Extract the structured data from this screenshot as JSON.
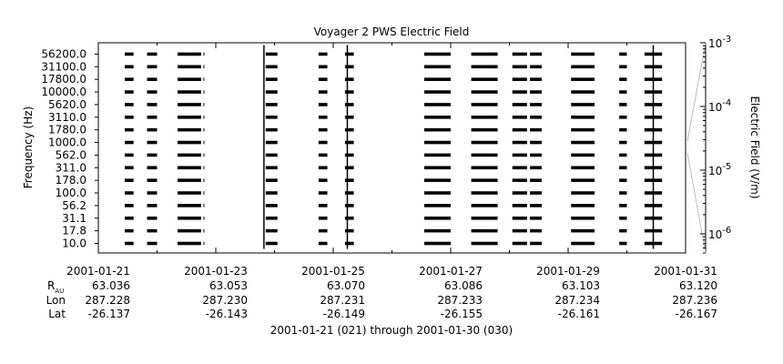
{
  "chart_data": {
    "type": "line",
    "title": "Voyager 2 PWS Electric Field",
    "ylabel": "Frequency (Hz)",
    "y2label": "Electric Field (V/m)",
    "subtitle": "2001-01-21 (021) through 2001-01-30 (030)",
    "x_range": [
      "2001-01-21",
      "2001-01-31"
    ],
    "channels": [
      "10.0",
      "17.8",
      "31.1",
      "56.2",
      "100.0",
      "178.0",
      "311.0",
      "562.0",
      "1000.0",
      "1780.0",
      "3110.0",
      "5620.0",
      "10000.0",
      "17800.0",
      "31100.0",
      "56200.0"
    ],
    "colorbar": {
      "scale": "log",
      "range": [
        5e-07,
        0.001
      ],
      "ticks": [
        {
          "base": "10",
          "exp": "-6",
          "value": 1e-06
        },
        {
          "base": "10",
          "exp": "-5",
          "value": 1e-05
        },
        {
          "base": "10",
          "exp": "-4",
          "value": 0.0001
        },
        {
          "base": "10",
          "exp": "-3",
          "value": 0.001
        }
      ]
    },
    "ephemeris": {
      "row_labels": {
        "r_main": "R",
        "r_sub": "AU",
        "lon": "Lon",
        "lat": "Lat"
      },
      "columns": [
        {
          "date": "2001-01-21",
          "r": "63.036",
          "lon": "287.228",
          "lat": "-26.137"
        },
        {
          "date": "2001-01-23",
          "r": "63.053",
          "lon": "287.230",
          "lat": "-26.143"
        },
        {
          "date": "2001-01-25",
          "r": "63.070",
          "lon": "287.231",
          "lat": "-26.149"
        },
        {
          "date": "2001-01-27",
          "r": "63.086",
          "lon": "287.233",
          "lat": "-26.155"
        },
        {
          "date": "2001-01-29",
          "r": "63.103",
          "lon": "287.234",
          "lat": "-26.161"
        },
        {
          "date": "2001-01-31",
          "r": "63.120",
          "lon": "287.236",
          "lat": "-26.167"
        }
      ]
    },
    "data_intervals_days": [
      [
        0.45,
        0.6
      ],
      [
        0.83,
        1.0
      ],
      [
        1.35,
        1.75
      ],
      [
        1.79,
        1.8
      ],
      [
        2.85,
        3.05
      ],
      [
        3.75,
        3.9
      ],
      [
        4.2,
        4.35
      ],
      [
        5.55,
        6.0
      ],
      [
        6.35,
        6.8
      ],
      [
        7.05,
        7.3
      ],
      [
        7.35,
        7.55
      ],
      [
        8.05,
        8.45
      ],
      [
        8.87,
        9.0
      ],
      [
        9.3,
        9.6
      ]
    ],
    "bursts": [
      {
        "day": 2.82,
        "peak_channel": 15
      },
      {
        "day": 4.24,
        "peak_channel": 15
      },
      {
        "day": 9.45,
        "peak_channel": 15
      }
    ]
  }
}
